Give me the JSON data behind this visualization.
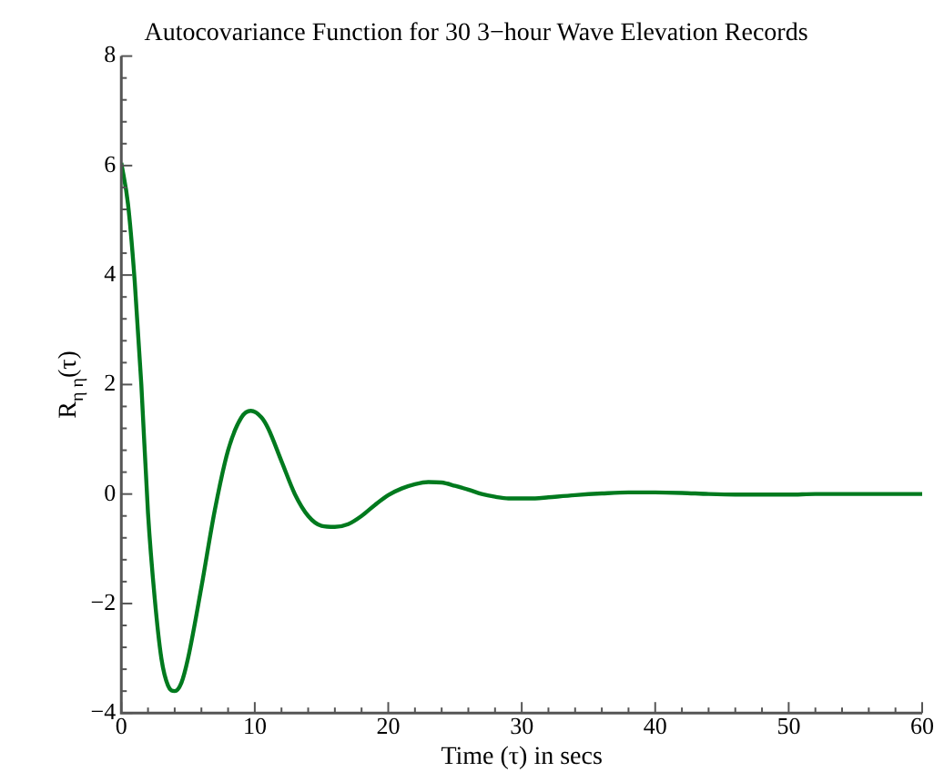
{
  "chart_data": {
    "type": "line",
    "title": "Autocovariance Function for 30 3−hour Wave Elevation Records",
    "xlabel": "Time (τ) in secs",
    "ylabel": "R$_{η η}$(τ)",
    "x": [
      0,
      0.5,
      1,
      1.5,
      2,
      2.5,
      3,
      3.5,
      4,
      4.5,
      5,
      6,
      7,
      8,
      9,
      9.7,
      10.5,
      11,
      12,
      13,
      14,
      15,
      16,
      17,
      18,
      19,
      20,
      21,
      22,
      23,
      24,
      25,
      26,
      27,
      28,
      29,
      30,
      31,
      32,
      34,
      36,
      38,
      40,
      42,
      44,
      46,
      48,
      50,
      52,
      54,
      56,
      58,
      60
    ],
    "series": [
      {
        "color": "#007a1e",
        "values": [
          6.05,
          5.3,
          3.9,
          2.0,
          -0.35,
          -1.9,
          -3.0,
          -3.5,
          -3.6,
          -3.45,
          -3.0,
          -1.7,
          -0.3,
          0.8,
          1.4,
          1.52,
          1.4,
          1.2,
          0.6,
          0.0,
          -0.4,
          -0.58,
          -0.6,
          -0.55,
          -0.4,
          -0.2,
          -0.02,
          0.1,
          0.18,
          0.22,
          0.21,
          0.15,
          0.08,
          0.0,
          -0.05,
          -0.08,
          -0.08,
          -0.08,
          -0.06,
          -0.02,
          0.01,
          0.03,
          0.03,
          0.02,
          0.0,
          -0.01,
          -0.01,
          -0.01,
          0.0,
          0.0,
          0.0,
          0.0,
          0.0
        ]
      }
    ],
    "xlim": [
      0,
      60
    ],
    "xticks": [
      0,
      10,
      20,
      30,
      40,
      50,
      60
    ],
    "ylim": [
      -4,
      8
    ],
    "yticks": [
      -4,
      -2,
      0,
      2,
      4,
      6,
      8
    ],
    "grid": false,
    "legend": false,
    "marker": "none",
    "line_style": "solid"
  }
}
